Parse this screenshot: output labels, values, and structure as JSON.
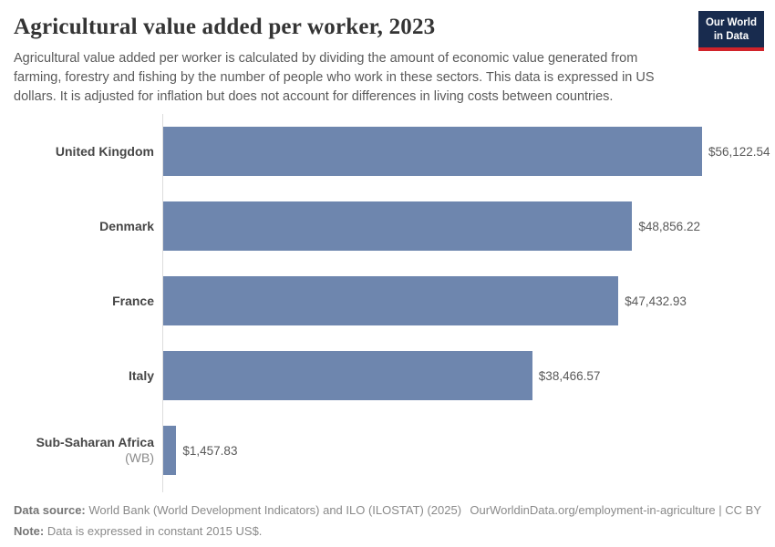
{
  "header": {
    "title": "Agricultural value added per worker, 2023",
    "subtitle": "Agricultural value added per worker is calculated by dividing the amount of economic value generated from farming, forestry and fishing by the number of people who work in these sectors. This data is expressed in US dollars. It is adjusted for inflation but does not account for differences in living costs between countries.",
    "logo": {
      "line1": "Our World",
      "line2": "in Data"
    }
  },
  "chart_data": {
    "type": "bar",
    "orientation": "horizontal",
    "title": "Agricultural value added per worker, 2023",
    "categories": [
      "United Kingdom",
      "Denmark",
      "France",
      "Italy",
      "Sub-Saharan Africa (WB)"
    ],
    "category_main": [
      "United Kingdom",
      "Denmark",
      "France",
      "Italy",
      "Sub-Saharan Africa"
    ],
    "category_suffix": [
      "",
      "",
      "",
      "",
      " (WB)"
    ],
    "values": [
      56122.54,
      48856.22,
      47432.93,
      38466.57,
      1457.83
    ],
    "value_labels": [
      "$56,122.54",
      "$48,856.22",
      "$47,432.93",
      "$38,466.57",
      "$1,457.83"
    ],
    "xlim": [
      0,
      56122.54
    ],
    "grid": false,
    "legend": "none",
    "bar_color": "#6e86ae",
    "axis_color": "#dcdcdc"
  },
  "footer": {
    "data_source_label": "Data source:",
    "data_source_text": " World Bank (World Development Indicators) and ILO (ILOSTAT) (2025)",
    "link_text": "OurWorldinData.org/employment-in-agriculture | CC BY",
    "note_label": "Note:",
    "note_text": " Data is expressed in constant 2015 US$."
  }
}
